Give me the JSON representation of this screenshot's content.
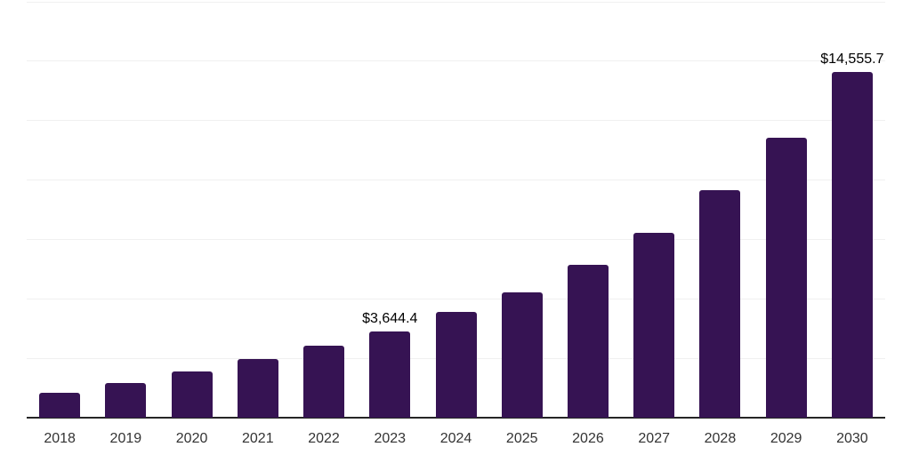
{
  "chart_data": {
    "type": "bar",
    "title": "",
    "xlabel": "",
    "ylabel": "",
    "categories": [
      "2018",
      "2019",
      "2020",
      "2021",
      "2022",
      "2023",
      "2024",
      "2025",
      "2026",
      "2027",
      "2028",
      "2029",
      "2030"
    ],
    "values": [
      1060,
      1460,
      1950,
      2470,
      3030,
      3644.4,
      4450,
      5270,
      6430,
      7780,
      9570,
      11780,
      14555.7
    ],
    "point_labels": [
      {
        "category": "2023",
        "text": "$3,644.4"
      },
      {
        "category": "2030",
        "text": "$14,555.7"
      }
    ],
    "ylim": [
      0,
      17500
    ],
    "gridline_step": 2500,
    "grid": true,
    "legend": false,
    "y_axis_labels_visible": false,
    "bar_color": "#361353",
    "axis_line_color": "#262626",
    "gridline_color": "#f0f0f0",
    "x_tick_color": "#333333",
    "data_label_color": "#000000"
  }
}
